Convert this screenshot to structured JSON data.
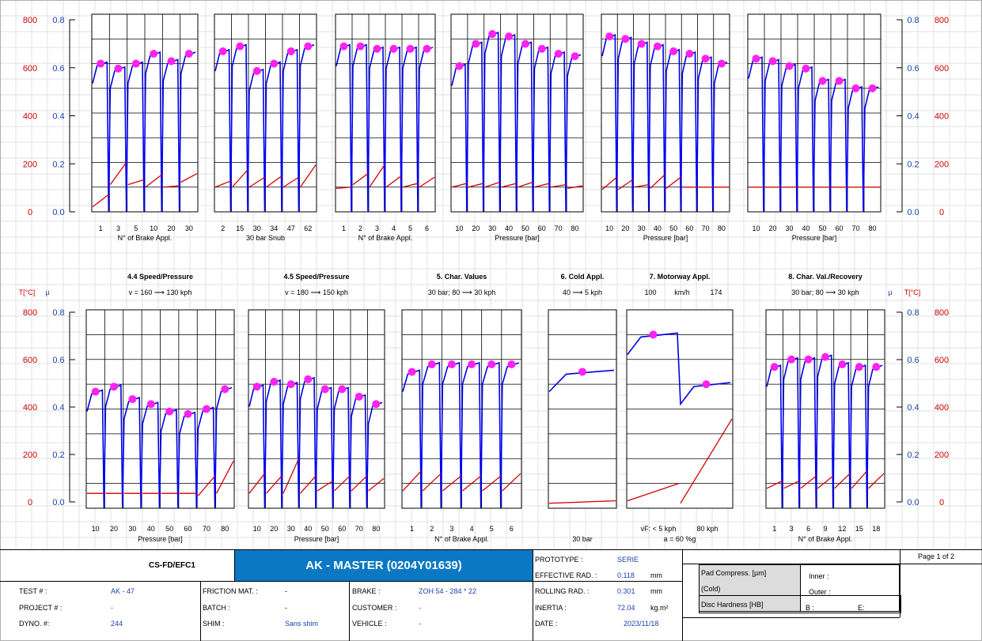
{
  "axis_labels": {
    "temp_left": "T[°C]",
    "mu_left": "µ",
    "mu_right": "µ",
    "temp_right": "T[°C]"
  },
  "axis_ticks": {
    "temp": [
      "800",
      "600",
      "400",
      "200",
      "0"
    ],
    "mu": [
      "0.8",
      "0.6",
      "0.4",
      "0.2",
      "0.0"
    ]
  },
  "colors": {
    "mu_line": "#0000ee",
    "temp_line": "#d40000",
    "points": "#ff22ee",
    "left_temp_axis": "#cc0000",
    "left_mu_axis": "#1a3fb0"
  },
  "chart_data": [
    {
      "type": "line",
      "row": 1,
      "title": "",
      "subtitle": "",
      "xlabel": "N° of Brake Appl.",
      "ticks": [
        "1",
        "3",
        "5",
        "10",
        "20",
        "30"
      ],
      "mu_points": [
        0.6,
        0.58,
        0.6,
        0.64,
        0.61,
        0.64
      ],
      "temp_segments": [
        [
          20,
          70
        ],
        [
          110,
          200
        ],
        [
          110,
          130
        ],
        [
          100,
          150
        ],
        [
          100,
          105
        ],
        [
          120,
          155
        ]
      ],
      "mu_ylim": [
        0,
        0.8
      ],
      "temp_ylim": [
        0,
        800
      ]
    },
    {
      "type": "line",
      "row": 1,
      "title": "",
      "subtitle": "",
      "xlabel": "30 bar Snub",
      "ticks": [
        "2",
        "15",
        "30",
        "34",
        "47",
        "62"
      ],
      "mu_points": [
        0.65,
        0.67,
        0.57,
        0.6,
        0.65,
        0.67
      ],
      "temp_segments": [
        [
          100,
          125
        ],
        [
          100,
          170
        ],
        [
          100,
          140
        ],
        [
          100,
          145
        ],
        [
          100,
          140
        ],
        [
          100,
          190
        ]
      ],
      "mu_ylim": [
        0,
        0.8
      ],
      "temp_ylim": [
        0,
        800
      ]
    },
    {
      "type": "line",
      "row": 1,
      "title": "",
      "subtitle": "",
      "xlabel": "N° of Brake Appl.",
      "ticks": [
        "1",
        "2",
        "3",
        "4",
        "5",
        "6"
      ],
      "mu_points": [
        0.67,
        0.67,
        0.66,
        0.66,
        0.66,
        0.66
      ],
      "temp_segments": [
        [
          95,
          100
        ],
        [
          110,
          155
        ],
        [
          100,
          190
        ],
        [
          100,
          145
        ],
        [
          100,
          115
        ],
        [
          100,
          140
        ]
      ],
      "mu_ylim": [
        0,
        0.8
      ],
      "temp_ylim": [
        0,
        800
      ]
    },
    {
      "type": "line",
      "row": 1,
      "title": "",
      "subtitle": "",
      "xlabel": "Pressure [bar]",
      "ticks": [
        "10",
        "20",
        "30",
        "40",
        "50",
        "60",
        "70",
        "80"
      ],
      "mu_points": [
        0.59,
        0.68,
        0.72,
        0.71,
        0.68,
        0.66,
        0.64,
        0.63
      ],
      "temp_segments": [
        [
          100,
          115
        ],
        [
          100,
          115
        ],
        [
          100,
          120
        ],
        [
          100,
          115
        ],
        [
          100,
          120
        ],
        [
          100,
          115
        ],
        [
          100,
          110
        ],
        [
          95,
          105
        ]
      ],
      "mu_ylim": [
        0,
        0.8
      ],
      "temp_ylim": [
        0,
        800
      ]
    },
    {
      "type": "line",
      "row": 1,
      "title": "",
      "subtitle": "",
      "xlabel": "Pressure [bar]",
      "ticks": [
        "10",
        "20",
        "30",
        "40",
        "50",
        "60",
        "70",
        "80"
      ],
      "mu_points": [
        0.71,
        0.7,
        0.68,
        0.67,
        0.65,
        0.64,
        0.62,
        0.6
      ],
      "temp_segments": [
        [
          90,
          140
        ],
        [
          90,
          130
        ],
        [
          100,
          110
        ],
        [
          95,
          150
        ],
        [
          95,
          140
        ],
        [
          100,
          100
        ],
        [
          100,
          100
        ],
        [
          100,
          100
        ]
      ],
      "mu_ylim": [
        0,
        0.8
      ],
      "temp_ylim": [
        0,
        800
      ]
    },
    {
      "type": "line",
      "row": 1,
      "title": "",
      "subtitle": "",
      "xlabel": "Pressure [bar]",
      "ticks": [
        "10",
        "20",
        "30",
        "40",
        "50",
        "60",
        "70",
        "80"
      ],
      "mu_points": [
        0.62,
        0.61,
        0.59,
        0.58,
        0.53,
        0.53,
        0.5,
        0.5
      ],
      "temp_segments": [
        [
          100,
          100
        ],
        [
          100,
          100
        ],
        [
          100,
          100
        ],
        [
          100,
          100
        ],
        [
          100,
          100
        ],
        [
          100,
          100
        ],
        [
          100,
          100
        ],
        [
          100,
          100
        ]
      ],
      "mu_ylim": [
        0,
        0.8
      ],
      "temp_ylim": [
        0,
        800
      ]
    },
    {
      "type": "line",
      "row": 2,
      "title": "4.4 Speed/Pressure",
      "subtitle": "v = 160 ⟶ 130 kph",
      "xlabel": "Pressure [bar]",
      "ticks": [
        "10",
        "20",
        "30",
        "40",
        "50",
        "60",
        "70",
        "80"
      ],
      "mu_points": [
        0.47,
        0.49,
        0.44,
        0.42,
        0.39,
        0.38,
        0.4,
        0.48
      ],
      "temp_segments": [
        [
          60,
          60
        ],
        [
          60,
          60
        ],
        [
          60,
          60
        ],
        [
          60,
          60
        ],
        [
          60,
          60
        ],
        [
          60,
          60
        ],
        [
          50,
          130
        ],
        [
          60,
          190
        ]
      ],
      "mu_ylim": [
        0,
        0.8
      ],
      "temp_ylim": [
        0,
        800
      ]
    },
    {
      "type": "line",
      "row": 2,
      "title": "4.5 Speed/Pressure",
      "subtitle": "v = 180 ⟶ 150 kph",
      "xlabel": "Pressure [bar]",
      "ticks": [
        "10",
        "20",
        "30",
        "40",
        "50",
        "60",
        "70",
        "80"
      ],
      "mu_points": [
        0.49,
        0.51,
        0.5,
        0.52,
        0.48,
        0.48,
        0.45,
        0.42
      ],
      "temp_segments": [
        [
          60,
          140
        ],
        [
          60,
          130
        ],
        [
          60,
          200
        ],
        [
          60,
          130
        ],
        [
          70,
          110
        ],
        [
          70,
          130
        ],
        [
          70,
          130
        ],
        [
          70,
          120
        ]
      ],
      "mu_ylim": [
        0,
        0.8
      ],
      "temp_ylim": [
        0,
        800
      ]
    },
    {
      "type": "line",
      "row": 2,
      "title": "5. Char. Values",
      "subtitle": "30 bar; 80 ⟶ 30 kph",
      "xlabel": "N° of Brake Appl.",
      "ticks": [
        "1",
        "2",
        "3",
        "4",
        "5",
        "6"
      ],
      "mu_points": [
        0.55,
        0.58,
        0.58,
        0.58,
        0.58,
        0.58
      ],
      "temp_segments": [
        [
          70,
          150
        ],
        [
          70,
          140
        ],
        [
          70,
          130
        ],
        [
          70,
          130
        ],
        [
          70,
          130
        ],
        [
          70,
          140
        ]
      ],
      "mu_ylim": [
        0,
        0.8
      ],
      "temp_ylim": [
        0,
        800
      ]
    },
    {
      "type": "line",
      "row": 2,
      "title": "6. Cold Appl.",
      "subtitle": "40 ⟶ 5 kph",
      "xlabel": "30 bar",
      "ticks": [],
      "mu_points": [
        0.55
      ],
      "temp_segments": [
        [
          20,
          30
        ]
      ],
      "mu_ylim": [
        0,
        0.8
      ],
      "temp_ylim": [
        0,
        800
      ]
    },
    {
      "type": "line",
      "row": 2,
      "title": "7. Motorway Appl.",
      "subtitle": "",
      "speed_values": [
        "100",
        "km/h",
        "174"
      ],
      "xlabel": "a = 60 %g",
      "extra_labels": [
        "vF: < 5 kph",
        "80 kph"
      ],
      "ticks": [],
      "mu_points": [
        0.7,
        0.5
      ],
      "temp_segments": [
        [
          30,
          100
        ],
        [
          20,
          360
        ]
      ],
      "mu_ylim": [
        0,
        0.8
      ],
      "temp_ylim": [
        0,
        800
      ]
    },
    {
      "type": "line",
      "row": 2,
      "title": "8. Char. Val./Recovery",
      "subtitle": "30 bar; 80 ⟶ 30 kph",
      "xlabel": "N° of Brake Appl.",
      "ticks": [
        "1",
        "3",
        "6",
        "9",
        "12",
        "15",
        "18"
      ],
      "mu_points": [
        0.57,
        0.6,
        0.6,
        0.61,
        0.58,
        0.57,
        0.57
      ],
      "temp_segments": [
        [
          80,
          110
        ],
        [
          80,
          110
        ],
        [
          80,
          130
        ],
        [
          80,
          130
        ],
        [
          80,
          140
        ],
        [
          80,
          150
        ],
        [
          80,
          140
        ]
      ],
      "mu_ylim": [
        0,
        0.8
      ],
      "temp_ylim": [
        0,
        800
      ]
    }
  ],
  "footer": {
    "code": "CS-FD/EFC1",
    "master_title": "AK - MASTER  (0204Y01639)",
    "page": "Page 1 of 2",
    "test_label": "TEST # :",
    "test_value": "AK - 47",
    "project_label": "PROJECT # :",
    "project_value": "-",
    "dyno_label": "DYNO.  #:",
    "dyno_value": "244",
    "friction_label": "FRICTION MAT. :",
    "friction_value": "-",
    "batch_label": "BATCH :",
    "batch_value": "-",
    "shim_label": "SHIM :",
    "shim_value": "Sans shim",
    "brake_label": "BRAKE :",
    "brake_value": "ZOH 54 - 284 * 22",
    "customer_label": "CUSTOMER :",
    "customer_value": "-",
    "vehicle_label": "VEHICLE :",
    "vehicle_value": "-",
    "prototype_label": "PROTOTYPE :",
    "prototype_value": "SERIE",
    "eff_rad_label": "EFFECTIVE RAD. :",
    "eff_rad_value": "0.118",
    "eff_rad_unit": "mm",
    "roll_rad_label": "ROLLING RAD. :",
    "roll_rad_value": "0.301",
    "roll_rad_unit": "mm",
    "inertia_label": "INERTIA :",
    "inertia_value": "72.04",
    "inertia_unit": "kg.m²",
    "date_label": "DATE :",
    "date_value": "2023/11/18",
    "pad_label": "Pad Compress. [µm]",
    "cold_label": "(Cold)",
    "inner_label": "Inner :",
    "outer_label": "Outer :",
    "disc_label": "Disc Hardness [HB]",
    "b_label": "B :",
    "e_label": "E:"
  }
}
